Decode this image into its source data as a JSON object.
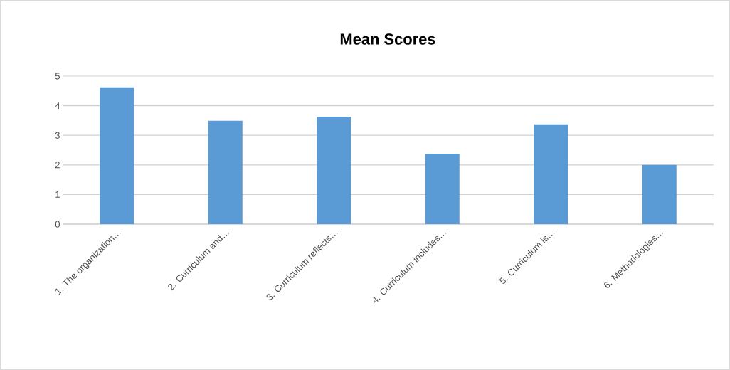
{
  "chart_data": {
    "type": "bar",
    "title": "Mean Scores",
    "categories": [
      "1. The organization…",
      "2.  Curriculum and…",
      "3.  Curriculum reflects…",
      "4.  Curriculum includes…",
      "5. Curriculum is…",
      "6. Methodologies…"
    ],
    "values": [
      4.62,
      3.49,
      3.63,
      2.38,
      3.37,
      2.0
    ],
    "color": "#5b9bd5",
    "ylim": [
      0,
      5
    ],
    "yticks": [
      0,
      1,
      2,
      3,
      4,
      5
    ],
    "grid": "y"
  }
}
